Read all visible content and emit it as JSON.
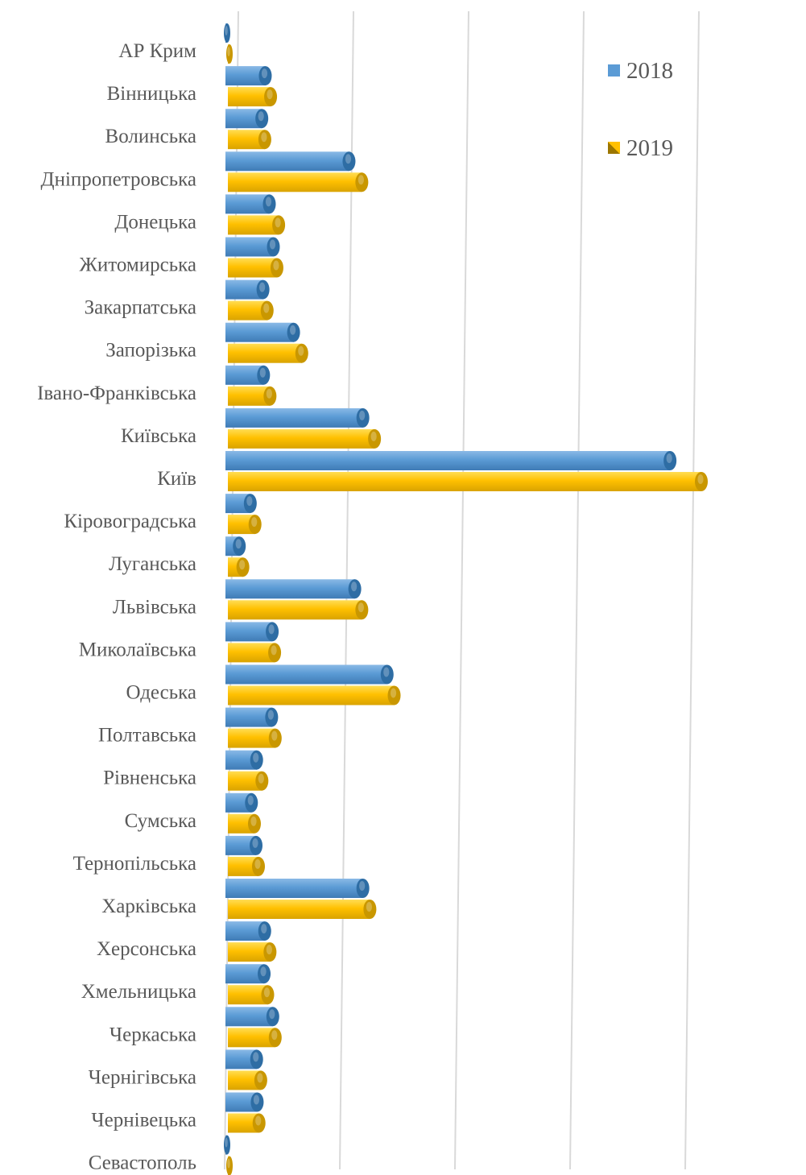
{
  "chart_data": {
    "type": "bar",
    "orientation": "horizontal",
    "style": "3d-cylinder",
    "title": "",
    "xlabel": "",
    "ylabel": "",
    "xlim": [
      0,
      4100
    ],
    "grid": true,
    "legend_position": "top-right",
    "categories": [
      "АР Крим",
      "Вінницька",
      "Волинська",
      "Дніпропетровська",
      "Донецька",
      "Житомирська",
      "Закарпатська",
      "Запорізька",
      "Івано-Франківська",
      "Київська",
      "Київ",
      "Кіровоградська",
      "Луганська",
      "Львівська",
      "Миколаївська",
      "Одеська",
      "Полтавська",
      "Рівненська",
      "Сумська",
      "Тернопільська",
      "Харківська",
      "Херсонська",
      "Хмельницька",
      "Черкаська",
      "Чернігівська",
      "Чернівецька",
      "Севастополь"
    ],
    "series": [
      {
        "name": "2018",
        "color": "#5b9bd5",
        "values": [
          5,
          345,
          315,
          1070,
          380,
          415,
          325,
          590,
          330,
          1190,
          3850,
          215,
          120,
          1120,
          405,
          1400,
          400,
          270,
          225,
          265,
          1190,
          340,
          335,
          410,
          270,
          275,
          10
        ]
      },
      {
        "name": "2019",
        "color": "#ffc000",
        "values": [
          5,
          370,
          320,
          1160,
          440,
          425,
          340,
          640,
          365,
          1270,
          4100,
          235,
          130,
          1160,
          405,
          1440,
          410,
          295,
          230,
          265,
          1230,
          365,
          345,
          410,
          285,
          270,
          10
        ]
      }
    ]
  }
}
